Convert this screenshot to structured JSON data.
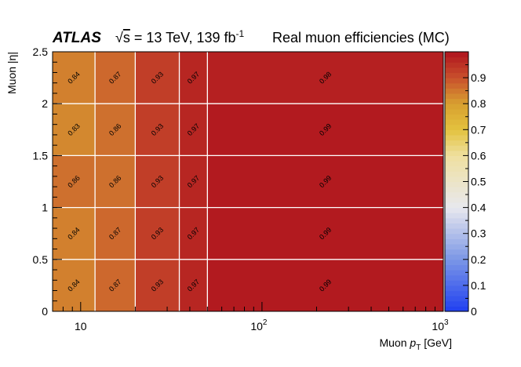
{
  "header": {
    "atlas": "ATLAS",
    "energy_pre": "√",
    "energy_s": "s",
    "energy_mid": " = 13 TeV, 139 fb",
    "lumi_exp": "-1",
    "description": "Real muon efficiencies (MC)"
  },
  "chart_data": {
    "type": "heatmap",
    "title": "",
    "xlabel_main": "Muon ",
    "xlabel_p": "p",
    "xlabel_sub": "T",
    "xlabel_unit": " [GeV]",
    "ylabel": "Muon |η|",
    "x_scale": "log",
    "xlim": [
      7,
      1000
    ],
    "ylim": [
      0,
      2.5
    ],
    "x_bin_edges": [
      7,
      12,
      20,
      35,
      50,
      1000
    ],
    "y_bin_edges": [
      0,
      0.5,
      1.0,
      1.5,
      2.0,
      2.5
    ],
    "values": [
      [
        0.84,
        0.87,
        0.93,
        0.97,
        0.99
      ],
      [
        0.84,
        0.87,
        0.93,
        0.97,
        0.99
      ],
      [
        0.86,
        0.86,
        0.93,
        0.97,
        0.99
      ],
      [
        0.83,
        0.86,
        0.93,
        0.97,
        0.99
      ],
      [
        0.84,
        0.87,
        0.93,
        0.97,
        0.98
      ]
    ],
    "labels": [
      [
        "0.84",
        "0.87",
        "0.93",
        "0.97",
        "0.99"
      ],
      [
        "0.84",
        "0.87",
        "0.93",
        "0.97",
        "0.99"
      ],
      [
        "0.86",
        "0.86",
        "0.93",
        "0.97",
        "0.99"
      ],
      [
        "0.83",
        "0.86",
        "0.93",
        "0.97",
        "0.99"
      ],
      [
        "0.84",
        "0.87",
        "0.93",
        "0.97",
        "0.98"
      ]
    ],
    "x_ticks": [
      {
        "value": 10,
        "base": "10",
        "exp": ""
      },
      {
        "value": 100,
        "base": "10",
        "exp": "2"
      },
      {
        "value": 1000,
        "base": "10",
        "exp": "3"
      }
    ],
    "y_ticks": [
      {
        "value": 0,
        "label": "0"
      },
      {
        "value": 0.5,
        "label": "0.5"
      },
      {
        "value": 1.0,
        "label": "1"
      },
      {
        "value": 1.5,
        "label": "1.5"
      },
      {
        "value": 2.0,
        "label": "2"
      },
      {
        "value": 2.5,
        "label": "2.5"
      }
    ],
    "z_range": [
      0,
      1
    ],
    "z_ticks": [
      {
        "value": 0,
        "label": "0"
      },
      {
        "value": 0.1,
        "label": "0.1"
      },
      {
        "value": 0.2,
        "label": "0.2"
      },
      {
        "value": 0.3,
        "label": "0.3"
      },
      {
        "value": 0.4,
        "label": "0.4"
      },
      {
        "value": 0.5,
        "label": "0.5"
      },
      {
        "value": 0.6,
        "label": "0.6"
      },
      {
        "value": 0.7,
        "label": "0.7"
      },
      {
        "value": 0.8,
        "label": "0.8"
      },
      {
        "value": 0.9,
        "label": "0.9"
      }
    ],
    "colormap": [
      {
        "z": 0.0,
        "color": "#1f3ff0"
      },
      {
        "z": 0.2,
        "color": "#7b96e6"
      },
      {
        "z": 0.4,
        "color": "#e8e8ee"
      },
      {
        "z": 0.6,
        "color": "#efe0a0"
      },
      {
        "z": 0.7,
        "color": "#e3c23e"
      },
      {
        "z": 0.8,
        "color": "#d8a030"
      },
      {
        "z": 0.9,
        "color": "#c8502c"
      },
      {
        "z": 1.0,
        "color": "#b0141e"
      }
    ],
    "grid": true,
    "label_rotation": "-45 degrees"
  }
}
